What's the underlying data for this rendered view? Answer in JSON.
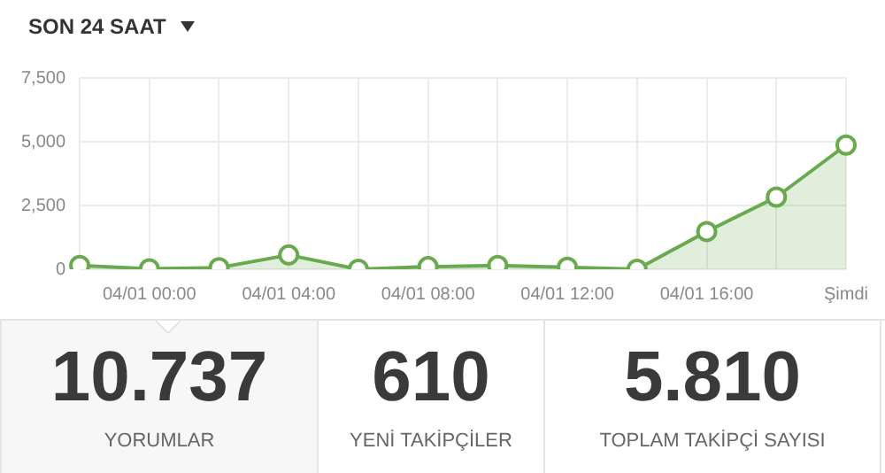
{
  "chart_data": [
    {
      "type": "area",
      "title": "SON 24 SAAT",
      "categories": [
        null,
        "04/01 00:00",
        null,
        "04/01 04:00",
        null,
        "04/01 08:00",
        null,
        "04/01 12:00",
        null,
        "04/01 16:00",
        null,
        "Şimdi"
      ],
      "series": [
        {
          "color": "#6aaa4f",
          "values": [
            150,
            20,
            60,
            560,
            0,
            100,
            150,
            80,
            0,
            1480,
            2830,
            4870
          ]
        }
      ],
      "ylim": [
        0,
        7500
      ],
      "yticks": [
        {
          "value": 0,
          "label": "0"
        },
        {
          "value": 2500,
          "label": "2,500"
        },
        {
          "value": 5000,
          "label": "5,000"
        },
        {
          "value": 7500,
          "label": "7,500"
        }
      ],
      "grid": true,
      "marker": "circle",
      "legend": false
    },
    {
      "type": "other",
      "categories": [
        "YORUMLAR",
        "YENİ TAKİPÇİLER",
        "TOPLAM TAKİPÇİ SAYISI"
      ],
      "annotations": [
        "10.737",
        "610",
        "5.810"
      ]
    }
  ]
}
